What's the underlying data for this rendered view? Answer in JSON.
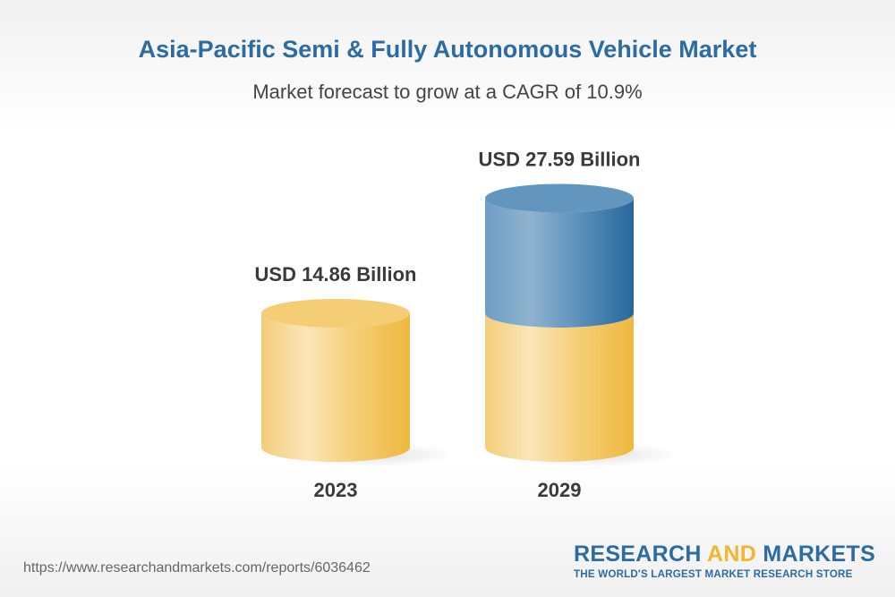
{
  "chart_data": {
    "type": "bar",
    "title": "Asia-Pacific Semi & Fully Autonomous Vehicle Market",
    "subtitle": "Market forecast to grow at a CAGR of 10.9%",
    "categories": [
      "2023",
      "2029"
    ],
    "values": [
      14.86,
      27.59
    ],
    "value_labels": [
      "USD 14.86 Billion",
      "USD 27.59 Billion"
    ],
    "style": "3d-cylinder",
    "colors": {
      "base": "#f2c45a",
      "growth": "#4a83b4"
    }
  },
  "footer": {
    "url": "https://www.researchandmarkets.com/reports/6036462",
    "logo_part1": "RESEARCH ",
    "logo_part2": "AND",
    "logo_part3": " MARKETS",
    "logo_tagline": "THE WORLD'S LARGEST MARKET RESEARCH STORE"
  }
}
